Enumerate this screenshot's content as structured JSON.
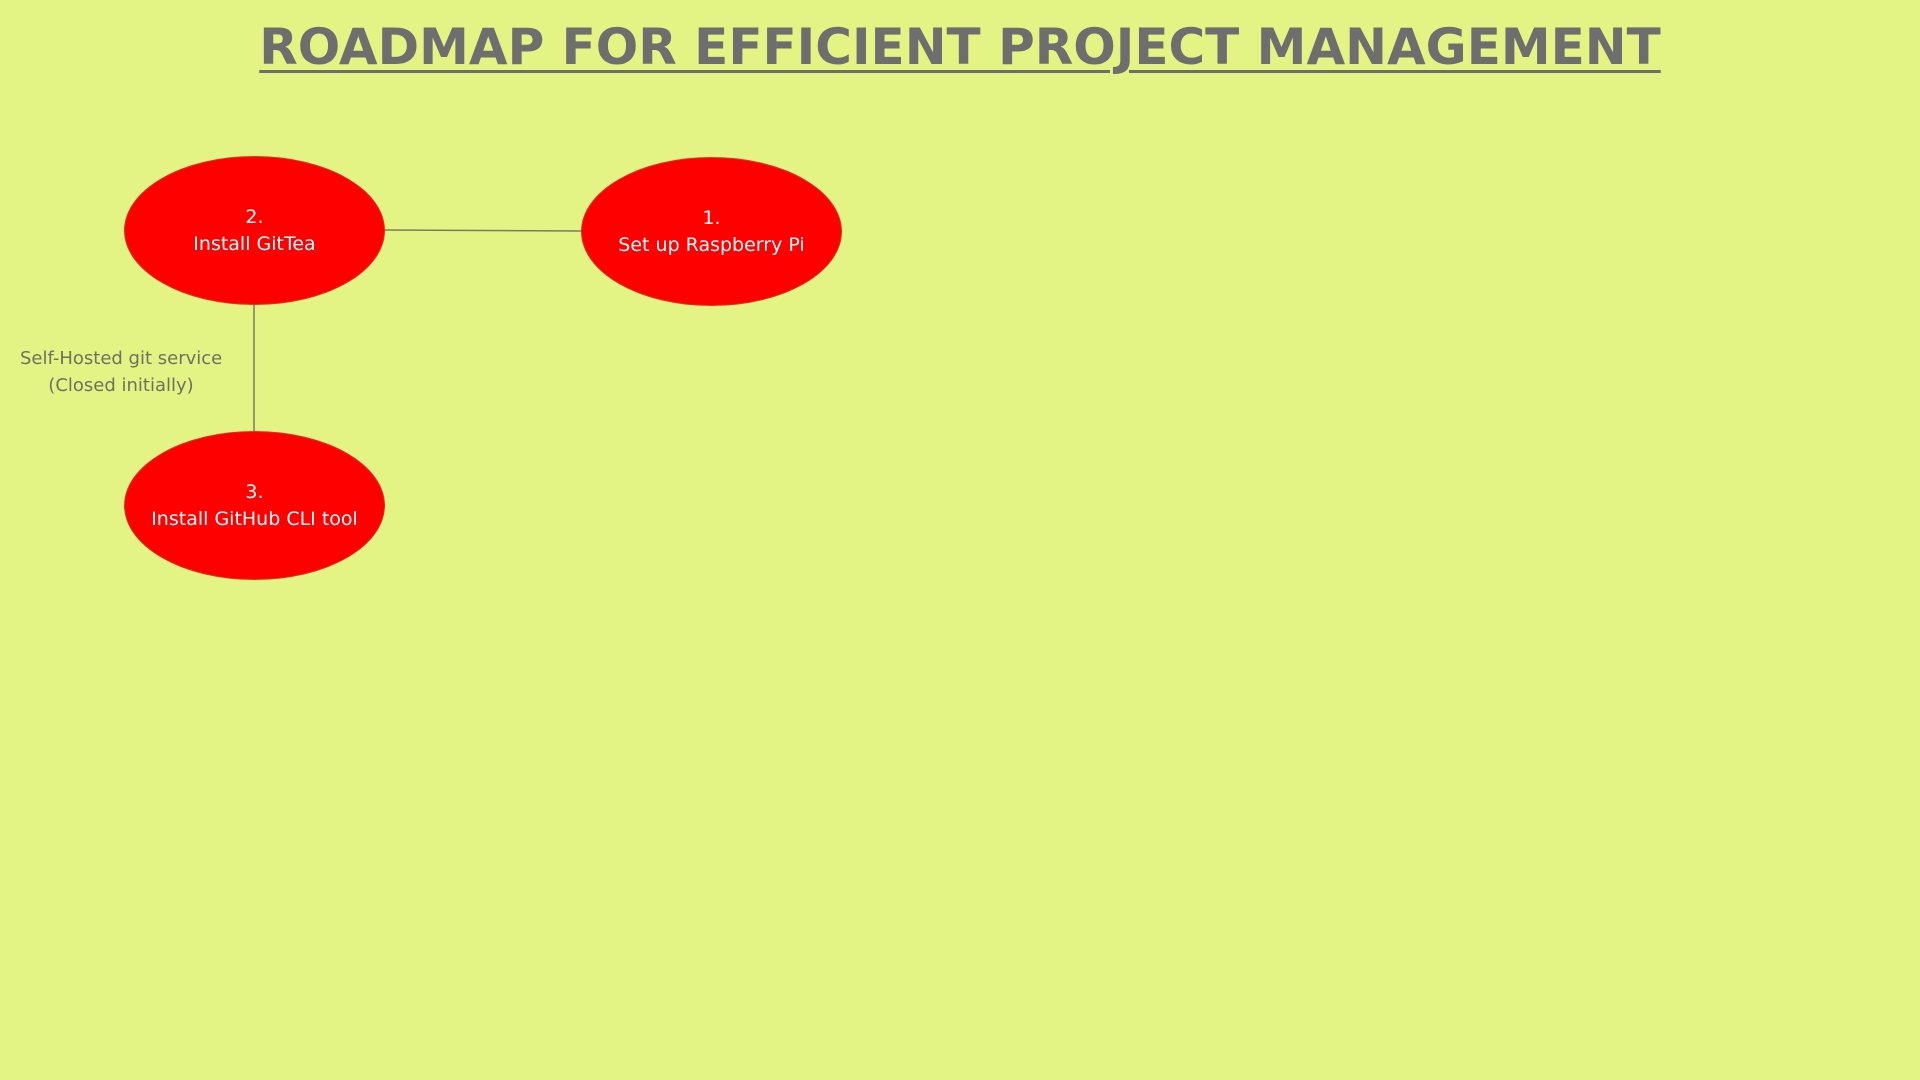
{
  "title": "ROADMAP FOR EFFICIENT PROJECT MANAGEMENT",
  "colors": {
    "background": "#e4f484",
    "node_fill": "#fe0000",
    "node_text": "#ffffff",
    "title_text": "#6e6e6e",
    "connector": "#7a7a6a"
  },
  "nodes": [
    {
      "number": "1.",
      "label": "Set up Raspberry Pi"
    },
    {
      "number": "2.",
      "label": "Install GitTea"
    },
    {
      "number": "3.",
      "label": "Install GitHub CLI tool"
    }
  ],
  "edges": [
    {
      "from": "2.",
      "to": "1."
    },
    {
      "from": "2.",
      "to": "3.",
      "label_line1": "Self-Hosted git service",
      "label_line2": "(Closed initially)"
    }
  ]
}
